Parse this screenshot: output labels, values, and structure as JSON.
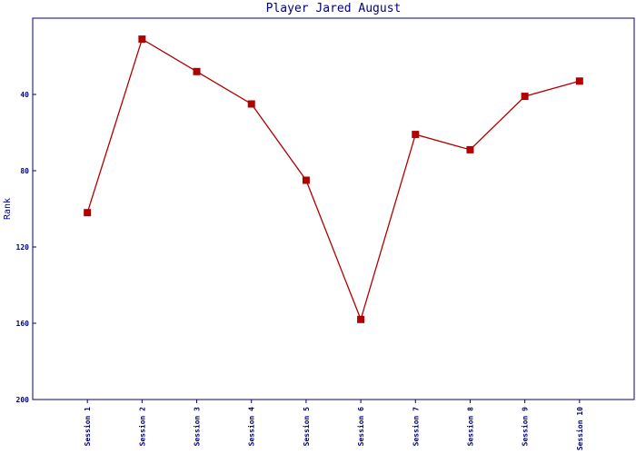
{
  "chart_data": {
    "type": "line",
    "title": "Player Jared August",
    "y_label": "Rank",
    "categories": [
      "Session 1",
      "Session 2",
      "Session 3",
      "Session 4",
      "Session 5",
      "Session 6",
      "Session 7",
      "Session 8",
      "Session 9",
      "Session 10"
    ],
    "series": [
      {
        "name": "Rank",
        "color": "#b00000",
        "values": [
          102,
          11,
          28,
          45,
          85,
          158,
          61,
          69,
          41,
          33
        ]
      }
    ],
    "ylim": [
      0,
      200
    ],
    "yticks": [
      40,
      80,
      120,
      160,
      200
    ],
    "invert_y": true,
    "axis_color": "#000080"
  }
}
